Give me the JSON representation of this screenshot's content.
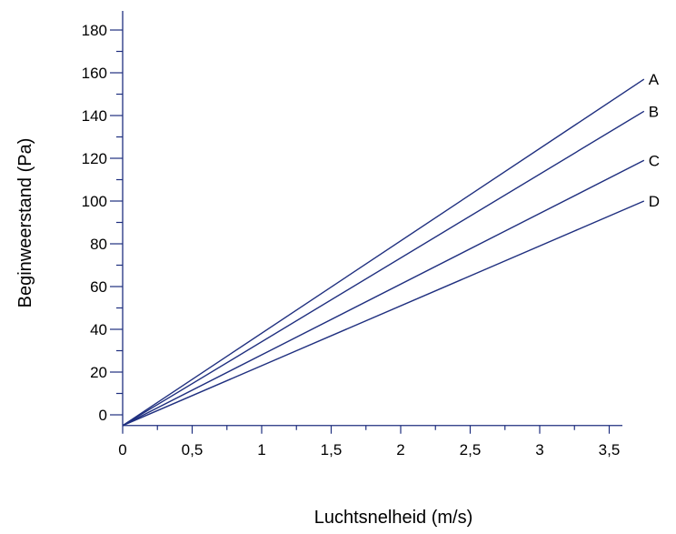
{
  "chart_data": {
    "type": "line",
    "xlabel": "Luchtsnelheid (m/s)",
    "ylabel": "Beginweerstand (Pa)",
    "xlim": [
      0,
      3.6
    ],
    "ylim": [
      -5,
      190
    ],
    "x_ticks": [
      0,
      0.5,
      1,
      1.5,
      2,
      2.5,
      3,
      3.5
    ],
    "x_tick_labels": [
      "0",
      "0,5",
      "1",
      "1,5",
      "2",
      "2,5",
      "3",
      "3,5"
    ],
    "y_ticks": [
      0,
      20,
      40,
      60,
      80,
      100,
      120,
      140,
      160,
      180
    ],
    "y_tick_labels": [
      "0",
      "20",
      "40",
      "60",
      "80",
      "100",
      "120",
      "140",
      "160",
      "180"
    ],
    "y_minor_step": 10,
    "grid": false,
    "series": [
      {
        "name": "A",
        "x": [
          0,
          3.75
        ],
        "y": [
          -5,
          157
        ]
      },
      {
        "name": "B",
        "x": [
          0,
          3.75
        ],
        "y": [
          -5,
          142
        ]
      },
      {
        "name": "C",
        "x": [
          0,
          3.75
        ],
        "y": [
          -5,
          119
        ]
      },
      {
        "name": "D",
        "x": [
          0,
          3.75
        ],
        "y": [
          -5,
          100
        ]
      }
    ],
    "colors": {
      "axis": "#1f2f7f",
      "series": "#1f2f7f"
    }
  }
}
